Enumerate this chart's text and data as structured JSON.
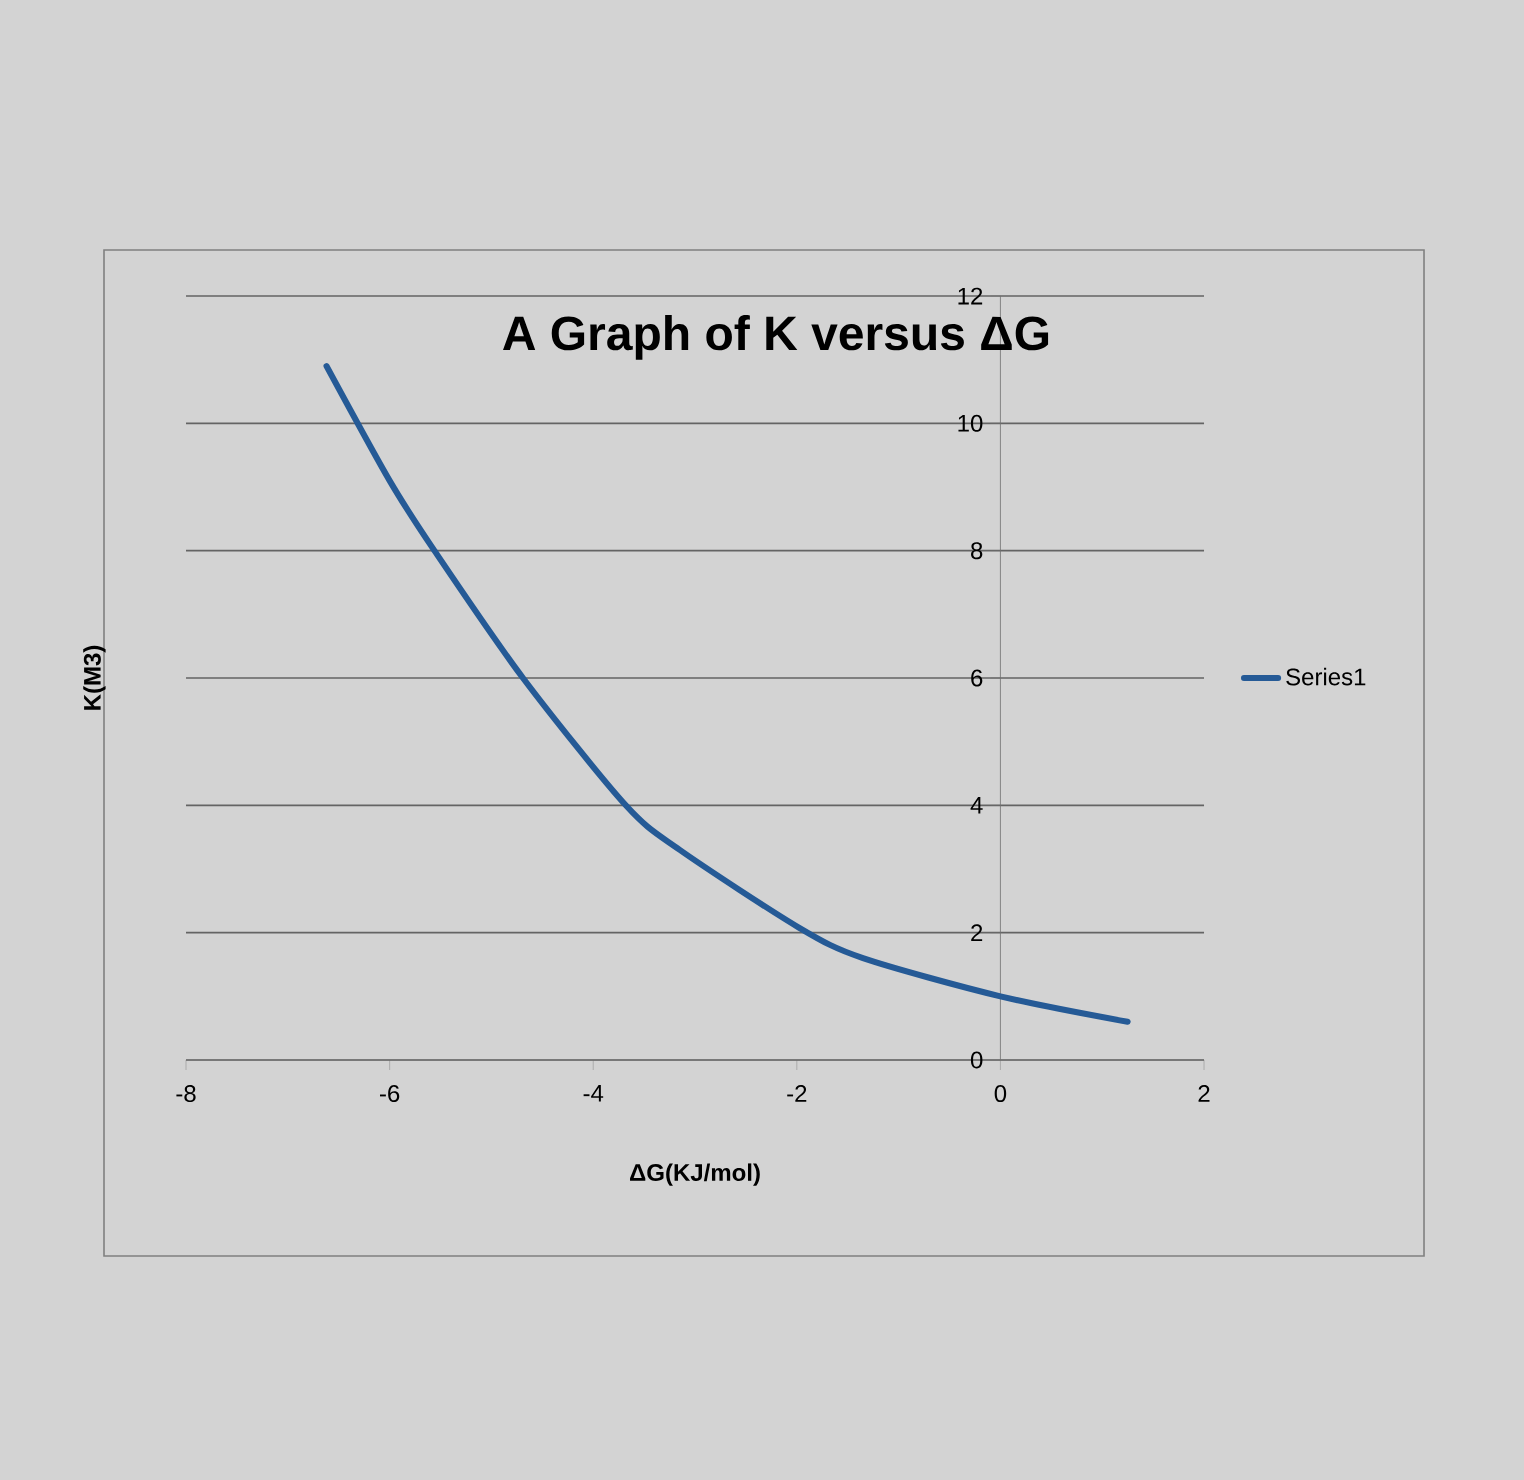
{
  "chart_data": {
    "type": "line",
    "title": "A Graph of K versus ΔG",
    "xlabel": "ΔG(KJ/mol)",
    "ylabel": "K(M3)",
    "x": [
      -6.62,
      -6.0,
      -5.56,
      -4.69,
      -3.68,
      -3.15,
      -1.98,
      -1.35,
      0,
      1.25
    ],
    "series": [
      {
        "name": "Series1",
        "color": "#255a96",
        "values": [
          10.9,
          9.1,
          8.0,
          6.0,
          4.0,
          3.3,
          2.08,
          1.6,
          1.0,
          0.6
        ]
      }
    ],
    "xlim": [
      -8,
      2
    ],
    "ylim": [
      0,
      12
    ],
    "xticks": [
      -8,
      -6,
      -4,
      -2,
      0,
      2
    ],
    "yticks": [
      0,
      2,
      4,
      6,
      8,
      10,
      12
    ],
    "grid": "y",
    "legend": "right"
  }
}
